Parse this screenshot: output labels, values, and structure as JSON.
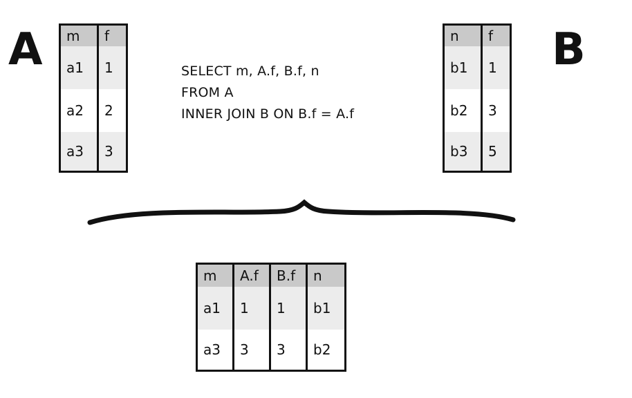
{
  "table_a": {
    "label": "A",
    "columns": [
      "m",
      "f"
    ],
    "rows": [
      [
        "a1",
        "1"
      ],
      [
        "a2",
        "2"
      ],
      [
        "a3",
        "3"
      ]
    ]
  },
  "table_b": {
    "label": "B",
    "columns": [
      "n",
      "f"
    ],
    "rows": [
      [
        "b1",
        "1"
      ],
      [
        "b2",
        "3"
      ],
      [
        "b3",
        "5"
      ]
    ]
  },
  "query": {
    "lines": [
      "SELECT m, A.f, B.f, n",
      "FROM A",
      "INNER JOIN B ON B.f = A.f"
    ]
  },
  "result": {
    "columns": [
      "m",
      "A.f",
      "B.f",
      "n"
    ],
    "rows": [
      [
        "a1",
        "1",
        "1",
        "b1"
      ],
      [
        "a3",
        "3",
        "3",
        "b2"
      ]
    ]
  },
  "colors": {
    "header": "#c9c9c9",
    "row_shaded": "#ececec",
    "ink": "#111111"
  }
}
